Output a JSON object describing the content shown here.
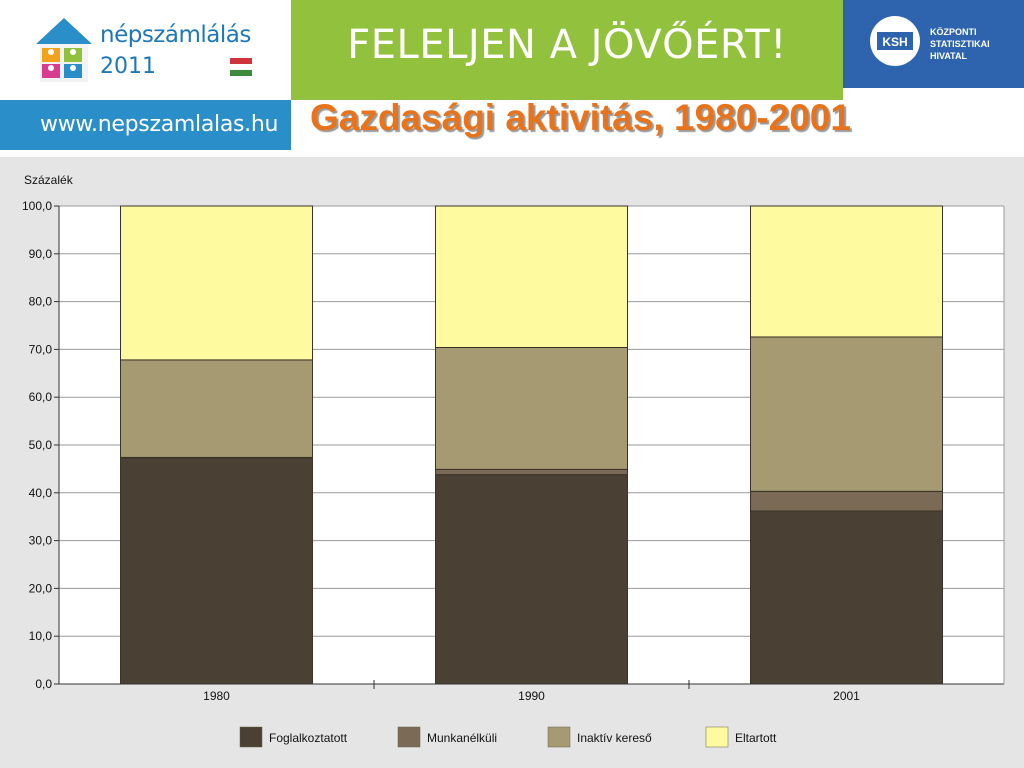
{
  "header": {
    "logo_title": "népszámlálás",
    "logo_year": "2011",
    "url": "www.nepszamlalas.hu",
    "slogan": "FELELJEN A JÖVŐÉRT!",
    "ksh_abbr": "KSH",
    "ksh_line1": "KÖZPONTI",
    "ksh_line2": "STATISZTIKAI",
    "ksh_line3": "HIVATAL"
  },
  "title": "Gazdasági aktivitás, 1980-2001",
  "colors": {
    "green": "#92c23d",
    "blue": "#2a8ec8",
    "ksh_blue": "#2e64ad",
    "title_orange": "#e8731a"
  },
  "chart_data": {
    "type": "bar",
    "stacked": true,
    "title": "Gazdasági aktivitás, 1980-2001",
    "ylabel": "Százalék",
    "xlabel": "",
    "categories": [
      "1980",
      "1990",
      "2001"
    ],
    "ylim": [
      0,
      100
    ],
    "yticks": [
      "0,0",
      "10,0",
      "20,0",
      "30,0",
      "40,0",
      "50,0",
      "60,0",
      "70,0",
      "80,0",
      "90,0",
      "100,0"
    ],
    "grid": true,
    "legend_position": "bottom",
    "series": [
      {
        "name": "Foglalkoztatott",
        "color": "#4a4033",
        "values": [
          47.3,
          43.8,
          36.2
        ]
      },
      {
        "name": "Munkanélküli",
        "color": "#7b6a55",
        "values": [
          0.1,
          1.1,
          4.1
        ]
      },
      {
        "name": "Inaktív kereső",
        "color": "#a69a72",
        "values": [
          20.4,
          25.5,
          32.3
        ]
      },
      {
        "name": "Eltartott",
        "color": "#fefaa0",
        "values": [
          32.2,
          29.6,
          27.4
        ]
      }
    ]
  }
}
